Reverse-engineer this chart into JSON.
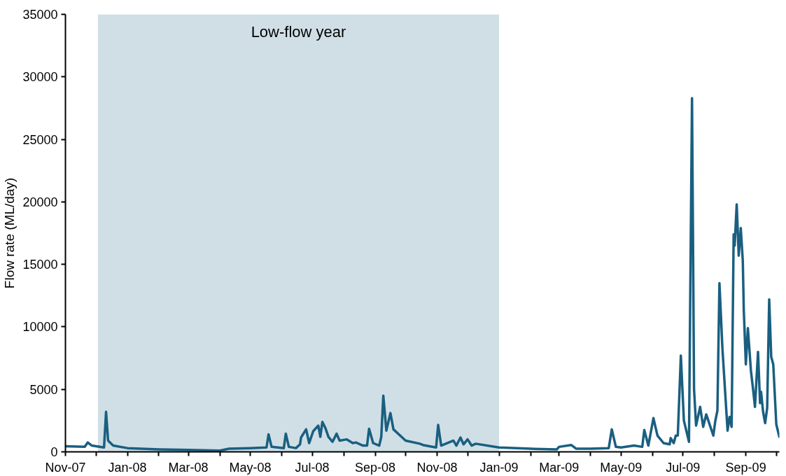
{
  "chart_data": {
    "type": "line",
    "ylabel": "Flow rate (ML/day)",
    "x": [
      "2007-11-01",
      "2007-11-20",
      "2007-11-23",
      "2007-11-27",
      "2007-12-09",
      "2007-12-11",
      "2007-12-13",
      "2007-12-18",
      "2008-01-01",
      "2008-02-01",
      "2008-03-01",
      "2008-04-01",
      "2008-04-10",
      "2008-05-01",
      "2008-05-17",
      "2008-05-19",
      "2008-05-22",
      "2008-06-03",
      "2008-06-05",
      "2008-06-08",
      "2008-06-15",
      "2008-06-19",
      "2008-06-20",
      "2008-06-25",
      "2008-06-28",
      "2008-07-02",
      "2008-07-07",
      "2008-07-09",
      "2008-07-11",
      "2008-07-14",
      "2008-07-17",
      "2008-07-21",
      "2008-07-25",
      "2008-07-28",
      "2008-08-04",
      "2008-08-10",
      "2008-08-13",
      "2008-08-20",
      "2008-08-24",
      "2008-08-26",
      "2008-08-30",
      "2008-09-05",
      "2008-09-07",
      "2008-09-09",
      "2008-09-12",
      "2008-09-16",
      "2008-09-19",
      "2008-10-01",
      "2008-10-15",
      "2008-10-18",
      "2008-10-31",
      "2008-11-02",
      "2008-11-05",
      "2008-11-17",
      "2008-11-20",
      "2008-11-24",
      "2008-11-27",
      "2008-12-01",
      "2008-12-05",
      "2008-12-09",
      "2009-01-01",
      "2009-02-01",
      "2009-02-27",
      "2009-03-01",
      "2009-03-13",
      "2009-03-18",
      "2009-04-01",
      "2009-04-19",
      "2009-04-22",
      "2009-04-26",
      "2009-05-01",
      "2009-05-14",
      "2009-05-22",
      "2009-05-24",
      "2009-05-28",
      "2009-06-02",
      "2009-06-06",
      "2009-06-12",
      "2009-06-18",
      "2009-06-19",
      "2009-06-22",
      "2009-06-24",
      "2009-06-26",
      "2009-06-29",
      "2009-07-02",
      "2009-07-07",
      "2009-07-10",
      "2009-07-12",
      "2009-07-14",
      "2009-07-18",
      "2009-07-21",
      "2009-07-24",
      "2009-07-31",
      "2009-08-02",
      "2009-08-04",
      "2009-08-06",
      "2009-08-09",
      "2009-08-14",
      "2009-08-16",
      "2009-08-18",
      "2009-08-20",
      "2009-08-21",
      "2009-08-23",
      "2009-08-25",
      "2009-08-27",
      "2009-08-29",
      "2009-08-30",
      "2009-09-01",
      "2009-09-03",
      "2009-09-06",
      "2009-09-08",
      "2009-09-10",
      "2009-09-13",
      "2009-09-15",
      "2009-09-16",
      "2009-09-18",
      "2009-09-20",
      "2009-09-22",
      "2009-09-24",
      "2009-09-26",
      "2009-09-28",
      "2009-10-01",
      "2009-10-04"
    ],
    "series": [
      {
        "color": "#1a5f80",
        "values": [
          450,
          400,
          750,
          500,
          350,
          3200,
          900,
          500,
          300,
          200,
          150,
          100,
          250,
          300,
          350,
          1400,
          400,
          300,
          1450,
          400,
          300,
          600,
          1150,
          1800,
          700,
          1650,
          2100,
          1200,
          2400,
          1900,
          1200,
          800,
          1450,
          900,
          1000,
          700,
          750,
          500,
          500,
          1850,
          700,
          500,
          1200,
          4500,
          1700,
          3100,
          1800,
          900,
          650,
          550,
          350,
          2150,
          500,
          900,
          500,
          1150,
          600,
          1000,
          500,
          650,
          350,
          250,
          200,
          400,
          550,
          250,
          250,
          300,
          1800,
          400,
          350,
          500,
          400,
          1750,
          500,
          2700,
          1300,
          700,
          600,
          1100,
          700,
          1300,
          1300,
          7700,
          2500,
          800,
          28300,
          5000,
          2100,
          3600,
          2000,
          3000,
          1300,
          2500,
          3300,
          13500,
          8200,
          1700,
          2800,
          2000,
          17400,
          16500,
          19800,
          15700,
          17900,
          15300,
          11300,
          7000,
          9900,
          6500,
          5100,
          3600,
          8000,
          3900,
          4800,
          3200,
          2300,
          3500,
          12200,
          7600,
          7000,
          2200,
          1200
        ]
      }
    ],
    "xlim": [
      "2007-11-01",
      "2009-10-04"
    ],
    "xticks": [
      {
        "value": "2007-11-01",
        "label": "Nov-07"
      },
      {
        "value": "2007-12-01",
        "label": null
      },
      {
        "value": "2008-01-01",
        "label": "Jan-08"
      },
      {
        "value": "2008-02-01",
        "label": null
      },
      {
        "value": "2008-03-01",
        "label": "Mar-08"
      },
      {
        "value": "2008-04-01",
        "label": null
      },
      {
        "value": "2008-05-01",
        "label": "May-08"
      },
      {
        "value": "2008-06-01",
        "label": null
      },
      {
        "value": "2008-07-01",
        "label": "Jul-08"
      },
      {
        "value": "2008-08-01",
        "label": null
      },
      {
        "value": "2008-09-01",
        "label": "Sep-08"
      },
      {
        "value": "2008-10-01",
        "label": null
      },
      {
        "value": "2008-11-01",
        "label": "Nov-08"
      },
      {
        "value": "2008-12-01",
        "label": null
      },
      {
        "value": "2009-01-01",
        "label": "Jan-09"
      },
      {
        "value": "2009-02-01",
        "label": null
      },
      {
        "value": "2009-03-01",
        "label": "Mar-09"
      },
      {
        "value": "2009-04-01",
        "label": null
      },
      {
        "value": "2009-05-01",
        "label": "May-09"
      },
      {
        "value": "2009-06-01",
        "label": null
      },
      {
        "value": "2009-07-01",
        "label": "Jul-09"
      },
      {
        "value": "2009-08-01",
        "label": null
      },
      {
        "value": "2009-09-01",
        "label": "Sep-09"
      },
      {
        "value": "2009-10-01",
        "label": null
      }
    ],
    "ylim": [
      0,
      35000
    ],
    "yticks": [
      0,
      5000,
      10000,
      15000,
      20000,
      25000,
      30000,
      35000
    ],
    "bands": [
      {
        "axis": "x",
        "from": "2007-12-03",
        "to": "2009-01-01",
        "label": "Low-flow year",
        "color": "#d0dfe6"
      }
    ],
    "grid": false,
    "marker": "none",
    "line_style": "solid"
  }
}
